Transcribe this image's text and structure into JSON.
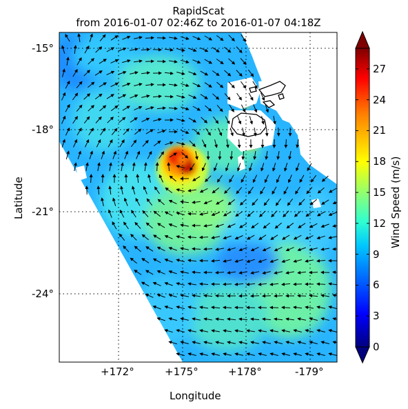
{
  "title": "RapidScat",
  "subtitle": "from 2016-01-07 02:46Z to 2016-01-07 04:18Z",
  "xlabel": "Longitude",
  "ylabel": "Latitude",
  "colorbar_label": "Wind Speed (m/s)",
  "colorbar_ticks": [
    "0",
    "3",
    "6",
    "9",
    "12",
    "15",
    "18",
    "21",
    "24",
    "27"
  ],
  "lon_ticks": [
    "+172°",
    "+175°",
    "+178°",
    "-179°"
  ],
  "lat_ticks": [
    "-15°",
    "-18°",
    "-21°",
    "-24°"
  ],
  "colors": {
    "jet": [
      "#00007f",
      "#0000ff",
      "#007fff",
      "#00ffff",
      "#7fff7f",
      "#ffff00",
      "#ff7f00",
      "#ff0000",
      "#7f0000"
    ],
    "land_fill": "#ffffff",
    "coastline": "#000000",
    "grid": "#000000"
  },
  "map_data": {
    "lon_range": [
      169.8,
      182.8
    ],
    "lat_range": [
      -25.8,
      -14.5
    ],
    "colorbar_range": [
      0,
      29
    ],
    "cyclone_center": {
      "lon": 174.9,
      "lat": -19.3,
      "peak_wind_ms": 27
    },
    "grid": "dotted"
  }
}
